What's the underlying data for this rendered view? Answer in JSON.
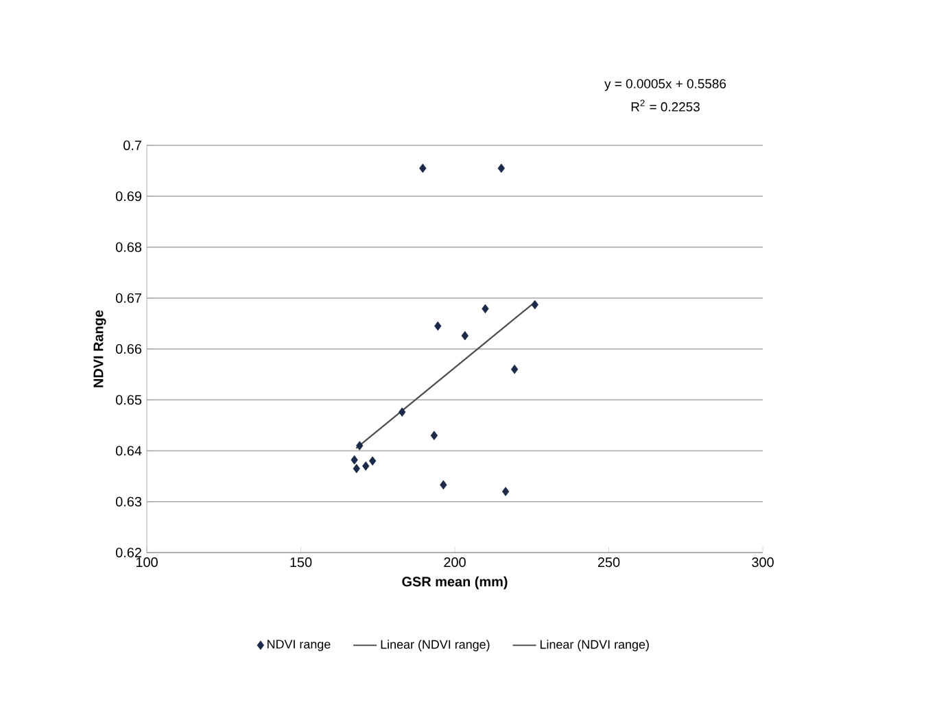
{
  "chart_data": {
    "type": "scatter",
    "xlabel": "GSR mean (mm)",
    "ylabel": "NDVI Range",
    "xlim": [
      100,
      300
    ],
    "xticks": [
      100,
      150,
      200,
      250,
      300
    ],
    "ylim": [
      0.62,
      0.7
    ],
    "yticks": [
      0.62,
      0.63,
      0.64,
      0.65,
      0.66,
      0.67,
      0.68,
      0.69,
      0.7
    ],
    "grid": "y",
    "legend": "bottom",
    "annotations": [
      "y = 0.0005x + 0.5586",
      "R$^{2}$ = 0.2253"
    ],
    "series": [
      {
        "name": "NDVI range",
        "marker": "diamond",
        "color": "#1c2a4a",
        "x": [
          189.6,
          215.1,
          226.0,
          209.9,
          194.5,
          203.3,
          219.4,
          182.9,
          193.3,
          169.1,
          167.4,
          173.3,
          171.1,
          168.1,
          196.3,
          216.5
        ],
        "values": [
          0.6955,
          0.6955,
          0.6687,
          0.6679,
          0.6645,
          0.6626,
          0.656,
          0.6476,
          0.643,
          0.641,
          0.6382,
          0.638,
          0.637,
          0.6365,
          0.6333,
          0.632
        ]
      },
      {
        "name": "Linear (NDVI range)",
        "type": "line",
        "marker": "none",
        "color": "#505050",
        "x": [
          168,
          226
        ],
        "values": [
          0.6405,
          0.6692
        ]
      },
      {
        "name": "Linear (NDVI range)",
        "type": "line",
        "marker": "none",
        "color": "#505050",
        "x": [
          168,
          226
        ],
        "values": [
          0.6405,
          0.6692
        ]
      }
    ]
  }
}
